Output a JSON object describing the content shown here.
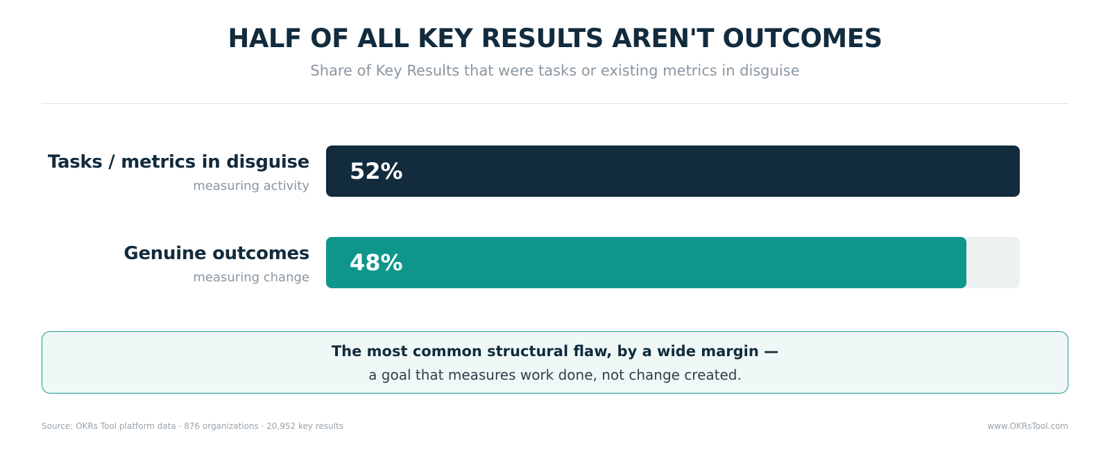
{
  "header": {
    "title": "HALF OF ALL KEY RESULTS AREN'T OUTCOMES",
    "subtitle": "Share of Key Results that were tasks or existing metrics in disguise"
  },
  "chart_data": {
    "type": "bar",
    "orientation": "horizontal",
    "title": "HALF OF ALL KEY RESULTS AREN'T OUTCOMES",
    "subtitle": "Share of Key Results that were tasks or existing metrics in disguise",
    "xlim": [
      0,
      52
    ],
    "categories": [
      "Tasks / metrics in disguise",
      "Genuine outcomes"
    ],
    "sublabels": [
      "measuring activity",
      "measuring change"
    ],
    "values": [
      52,
      48
    ],
    "value_labels": [
      "52%",
      "48%"
    ],
    "colors": [
      "#122b3d",
      "#0f968a"
    ],
    "track_color": "#edf1f2"
  },
  "callout": {
    "headline": "The most common structural flaw, by a wide margin —",
    "body": "a goal that measures work done, not change created."
  },
  "footer": {
    "source": "Source: OKRs Tool platform data · 876 organizations · 20,952 key results",
    "site": "www.OKRsTool.com"
  }
}
